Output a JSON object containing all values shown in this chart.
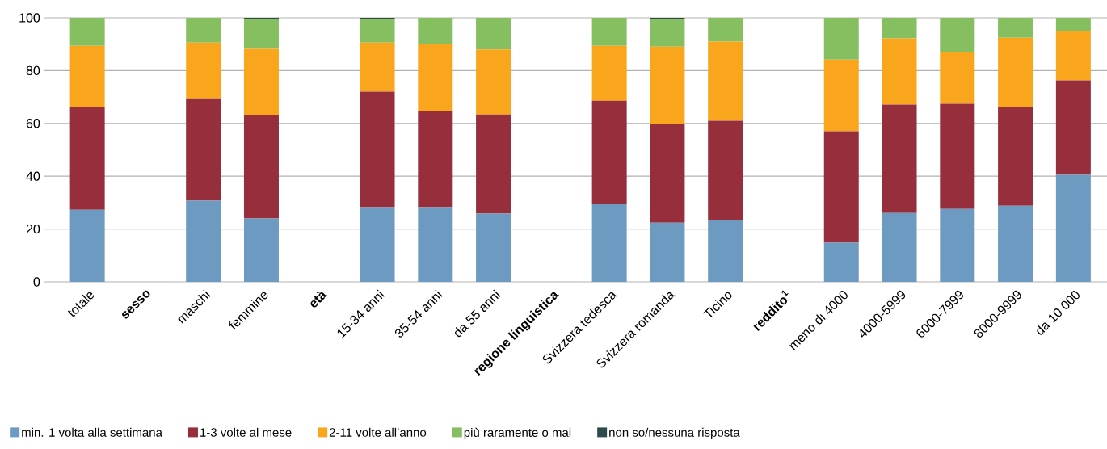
{
  "chart_data": {
    "type": "bar",
    "stacked": true,
    "categories": [
      "totale",
      "sesso",
      "maschi",
      "femmine",
      "età",
      "15-34 anni",
      "35-54 anni",
      "da 55 anni",
      "regione linguistica",
      "Svizzera tedesca",
      "Svizzera romanda",
      "Ticino",
      "reddito$^{1}$",
      "meno di 4000",
      "4000-5999",
      "6000-7999",
      "8000-9999",
      "da 10 000"
    ],
    "series": [
      {
        "name": "min. 1 volta alla settimana",
        "color": "#6c9ac1",
        "values": [
          27.3,
          null,
          30.7,
          24.0,
          null,
          28.3,
          28.3,
          25.8,
          null,
          29.5,
          22.4,
          23.3,
          null,
          14.8,
          26.1,
          27.6,
          28.8,
          40.5
        ]
      },
      {
        "name": "1-3 volte al mese",
        "color": "#962e3c",
        "values": [
          38.8,
          null,
          38.8,
          39.1,
          null,
          43.7,
          36.4,
          37.6,
          null,
          39.1,
          37.4,
          37.7,
          null,
          42.2,
          41.0,
          39.8,
          37.3,
          35.8
        ]
      },
      {
        "name": "2-11 volte all’anno",
        "color": "#f9a61d",
        "values": [
          23.3,
          null,
          21.1,
          25.1,
          null,
          18.6,
          25.3,
          24.6,
          null,
          20.8,
          29.3,
          30.0,
          null,
          27.2,
          25.1,
          19.5,
          26.3,
          18.6
        ]
      },
      {
        "name": "più raramente o mai",
        "color": "#85bf60",
        "values": [
          10.6,
          null,
          9.4,
          11.5,
          null,
          9.1,
          10.0,
          12.0,
          null,
          10.6,
          10.6,
          9.0,
          null,
          15.8,
          7.8,
          13.1,
          7.6,
          5.1
        ]
      },
      {
        "name": "non so/nessuna risposta",
        "color": "#2e4b4b",
        "values": [
          0,
          null,
          0,
          0.3,
          null,
          0.3,
          0,
          0,
          null,
          0,
          0.3,
          0,
          null,
          0,
          0,
          0,
          0,
          0
        ]
      }
    ],
    "ylim": [
      0,
      100
    ],
    "yticks": [
      0,
      20,
      40,
      60,
      80,
      100
    ],
    "grid": "y",
    "legend": "bottom"
  }
}
